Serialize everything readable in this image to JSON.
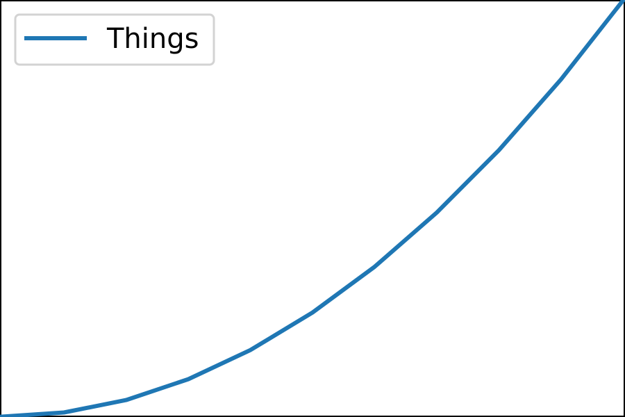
{
  "chart_data": {
    "type": "line",
    "title": "",
    "xlabel": "",
    "ylabel": "",
    "x": [
      0,
      1,
      2,
      3,
      4,
      5,
      6,
      7,
      8,
      9,
      10
    ],
    "series": [
      {
        "name": "Things",
        "values": [
          0,
          1,
          4,
          9,
          16,
          25,
          36,
          49,
          64,
          81,
          100
        ],
        "color": "#1f77b4"
      }
    ],
    "xlim": [
      -0.03,
      10.03
    ],
    "ylim": [
      -0.08,
      100.06
    ],
    "grid": false,
    "axes_ticks_visible": false,
    "legend": {
      "placement": "top-left"
    }
  }
}
